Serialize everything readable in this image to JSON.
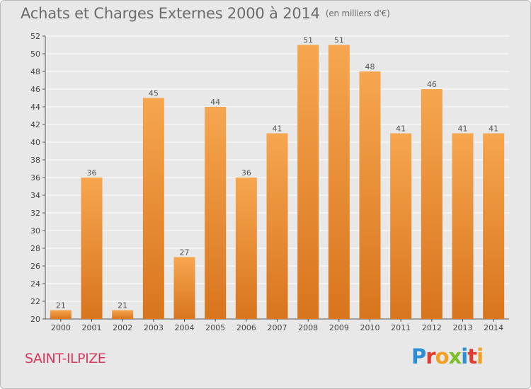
{
  "header": {
    "title": "Achats et Charges Externes 2000 à 2014",
    "unit": "(en milliers d'€)"
  },
  "footer": {
    "commune": "SAINT-ILPIZE",
    "brand_letters": [
      "P",
      "r",
      "o",
      "x",
      "i",
      "t",
      "i"
    ],
    "brand_colors": [
      "#2a8fd6",
      "#e03b2e",
      "#f2a024",
      "#7cbf2a",
      "#2a8fd6",
      "#e03b2e",
      "#f2a024"
    ]
  },
  "colors": {
    "bar_light": "#f6a64f",
    "bar_dark": "#d8751e",
    "axis": "#555555",
    "grid": "#ffffff"
  },
  "chart_data": {
    "type": "bar",
    "categories": [
      "2000",
      "2001",
      "2002",
      "2003",
      "2004",
      "2005",
      "2006",
      "2007",
      "2008",
      "2009",
      "2010",
      "2011",
      "2012",
      "2013",
      "2014"
    ],
    "values": [
      21,
      36,
      21,
      45,
      27,
      44,
      36,
      41,
      51,
      51,
      48,
      41,
      46,
      41,
      41
    ],
    "data_labels": [
      "21",
      "36",
      "21",
      "45",
      "27",
      "44",
      "36",
      "41",
      "51",
      "51",
      "48",
      "41",
      "46",
      "41",
      "41"
    ],
    "ylim": [
      20,
      52
    ],
    "yticks": [
      20,
      22,
      24,
      26,
      28,
      30,
      32,
      34,
      36,
      38,
      40,
      42,
      44,
      46,
      48,
      50,
      52
    ],
    "ytick_labels": [
      "20",
      "22",
      "24",
      "26",
      "28",
      "30",
      "32",
      "34",
      "36",
      "38",
      "40",
      "42",
      "44",
      "46",
      "48",
      "50",
      "52"
    ],
    "grid": true,
    "legend": "none"
  }
}
